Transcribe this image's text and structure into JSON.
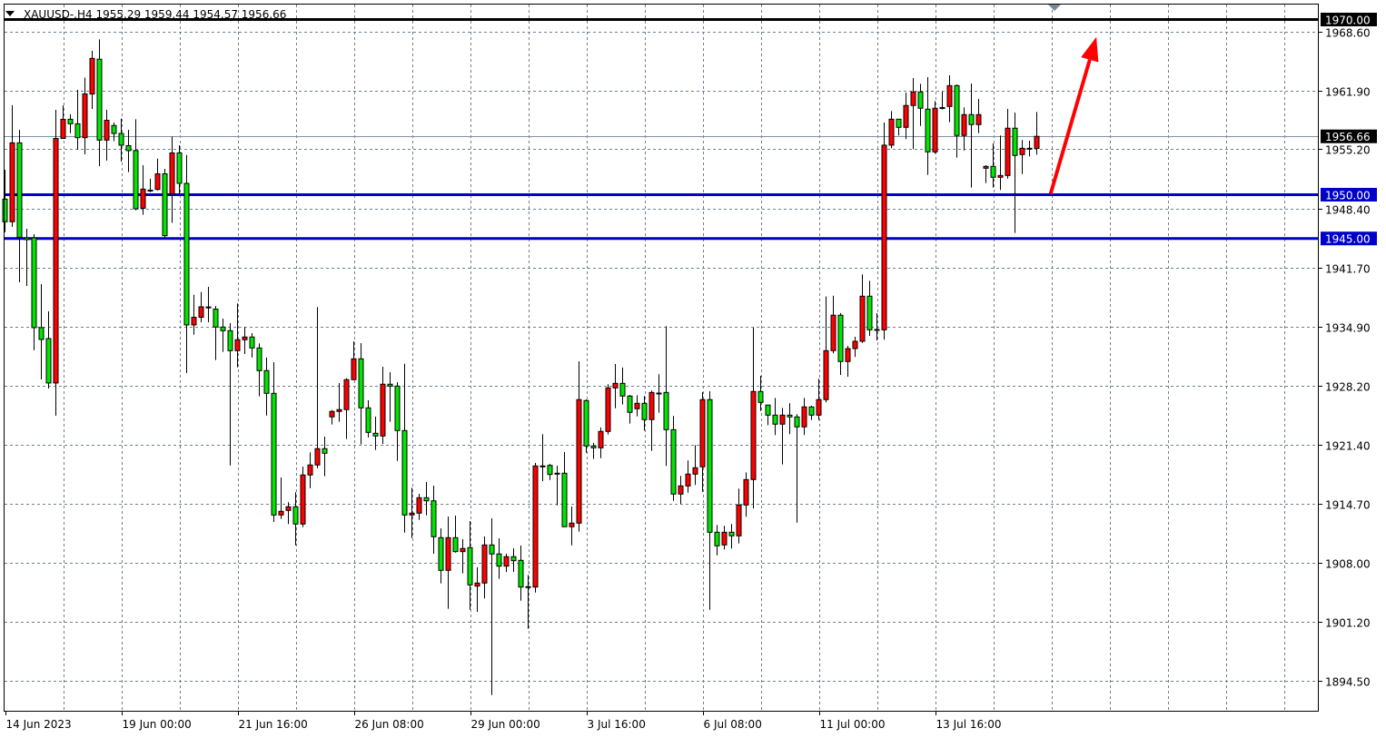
{
  "header": {
    "symbol_label": "XAUUSD-,H4  1955.29 1959.44 1954.57 1956.66"
  },
  "colors": {
    "bull": "#ff0000",
    "bear": "#00e600",
    "outline": "#000000",
    "grid": "#6f7f8f",
    "level_blue": "#0000c8",
    "level_black": "#000000",
    "arrow": "#ff0000",
    "current_price_line": "#8090a0"
  },
  "chart_data": {
    "type": "candlestick",
    "title": "XAUUSD-,H4",
    "ylim": [
      1892.9,
      1972.0
    ],
    "grid": true,
    "y_ticks": [
      "1968.60",
      "1961.90",
      "1955.20",
      "1948.40",
      "1941.70",
      "1934.90",
      "1928.20",
      "1921.40",
      "1914.70",
      "1908.00",
      "1901.20",
      "1894.50"
    ],
    "x_ticks": [
      {
        "index": 0,
        "label": "14 Jun 2023"
      },
      {
        "index": 16,
        "label": "19 Jun 00:00"
      },
      {
        "index": 32,
        "label": "21 Jun 16:00"
      },
      {
        "index": 48,
        "label": "26 Jun 08:00"
      },
      {
        "index": 64,
        "label": "29 Jun 00:00"
      },
      {
        "index": 80,
        "label": "3 Jul 16:00"
      },
      {
        "index": 96,
        "label": "6 Jul 08:00"
      },
      {
        "index": 112,
        "label": "11 Jul 00:00"
      },
      {
        "index": 128,
        "label": "13 Jul 16:00"
      }
    ],
    "ohlc_fields": [
      "open",
      "high",
      "low",
      "close"
    ],
    "candles": [
      [
        1949.49,
        1952.85,
        1945.72,
        1946.91
      ],
      [
        1946.91,
        1960.21,
        1946.32,
        1955.92
      ],
      [
        1955.92,
        1957.41,
        1939.99,
        1945.13
      ],
      [
        1945.08,
        1946.11,
        1939.58,
        1944.87
      ],
      [
        1945.08,
        1945.49,
        1932.23,
        1934.82
      ],
      [
        1934.82,
        1939.79,
        1928.91,
        1933.47
      ],
      [
        1933.57,
        1936.68,
        1927.87,
        1928.5
      ],
      [
        1928.5,
        1959.69,
        1924.76,
        1956.42
      ],
      [
        1956.42,
        1960.21,
        1956.37,
        1958.61
      ],
      [
        1958.61,
        1959.2,
        1957.03,
        1958.09
      ],
      [
        1958.09,
        1961.97,
        1955.13,
        1956.51
      ],
      [
        1956.51,
        1963.37,
        1954.61,
        1961.5
      ],
      [
        1961.5,
        1966.43,
        1959.79,
        1965.56
      ],
      [
        1965.47,
        1967.73,
        1953.26,
        1956.23
      ],
      [
        1956.23,
        1959.69,
        1953.89,
        1958.49
      ],
      [
        1957.9,
        1958.24,
        1956.11,
        1956.99
      ],
      [
        1956.99,
        1958.69,
        1953.78,
        1955.65
      ],
      [
        1955.6,
        1957.41,
        1952.58,
        1955.03
      ],
      [
        1955.04,
        1958.61,
        1948.22,
        1948.39
      ],
      [
        1948.45,
        1953.37,
        1947.7,
        1950.64
      ],
      [
        1950.48,
        1951.82,
        1950.28,
        1950.52
      ],
      [
        1950.6,
        1954.12,
        1950.48,
        1952.38
      ],
      [
        1952.38,
        1952.95,
        1945.13,
        1945.32
      ],
      [
        1950.08,
        1956.63,
        1946.79,
        1954.77
      ],
      [
        1954.77,
        1955.65,
        1950.05,
        1951.29
      ],
      [
        1951.29,
        1954.53,
        1929.65,
        1935.13
      ],
      [
        1935.13,
        1938.58,
        1934.02,
        1936.0
      ],
      [
        1936.0,
        1938.9,
        1935.44,
        1937.2
      ],
      [
        1937.12,
        1939.48,
        1935.44,
        1937.18
      ],
      [
        1936.94,
        1937.3,
        1931.12,
        1934.89
      ],
      [
        1934.89,
        1935.85,
        1932.05,
        1934.47
      ],
      [
        1934.47,
        1935.33,
        1919.09,
        1932.19
      ],
      [
        1932.19,
        1937.58,
        1930.29,
        1933.44
      ],
      [
        1933.44,
        1934.92,
        1931.81,
        1933.75
      ],
      [
        1933.75,
        1934.19,
        1931.4,
        1932.5
      ],
      [
        1932.5,
        1933.02,
        1926.97,
        1929.91
      ],
      [
        1929.91,
        1931.4,
        1924.79,
        1927.32
      ],
      [
        1927.32,
        1930.88,
        1912.64,
        1913.43
      ],
      [
        1913.43,
        1917.71,
        1912.98,
        1913.85
      ],
      [
        1913.95,
        1914.89,
        1912.4,
        1914.37
      ],
      [
        1914.37,
        1916.03,
        1909.97,
        1912.4
      ],
      [
        1912.4,
        1918.96,
        1912.04,
        1918.0
      ],
      [
        1918.0,
        1920.59,
        1916.5,
        1919.14
      ],
      [
        1919.14,
        1937.17,
        1918.78,
        1921.0
      ],
      [
        1921.0,
        1922.38,
        1917.85,
        1920.48
      ],
      [
        1924.63,
        1925.42,
        1923.76,
        1925.25
      ],
      [
        1925.25,
        1928.49,
        1924.07,
        1925.46
      ],
      [
        1925.46,
        1929.04,
        1922.1,
        1928.88
      ],
      [
        1928.88,
        1933.26,
        1928.88,
        1931.26
      ],
      [
        1931.26,
        1933.05,
        1921.48,
        1925.66
      ],
      [
        1925.66,
        1926.52,
        1922.28,
        1922.86
      ],
      [
        1922.76,
        1924.66,
        1920.86,
        1922.45
      ],
      [
        1922.45,
        1930.36,
        1921.55,
        1928.36
      ],
      [
        1928.36,
        1929.74,
        1924.07,
        1928.15
      ],
      [
        1928.15,
        1928.6,
        1919.61,
        1923.07
      ],
      [
        1923.07,
        1930.7,
        1911.42,
        1913.43
      ],
      [
        1913.43,
        1916.54,
        1910.8,
        1913.64
      ],
      [
        1913.64,
        1915.85,
        1912.87,
        1915.4
      ],
      [
        1915.4,
        1917.2,
        1913.39,
        1915.05
      ],
      [
        1915.05,
        1916.78,
        1909.01,
        1910.95
      ],
      [
        1910.84,
        1911.91,
        1905.62,
        1907.11
      ],
      [
        1907.11,
        1913.26,
        1902.72,
        1910.84
      ],
      [
        1910.84,
        1913.36,
        1909.14,
        1909.25
      ],
      [
        1909.25,
        1910.67,
        1906.76,
        1909.6
      ],
      [
        1909.7,
        1912.74,
        1902.61,
        1905.45
      ],
      [
        1905.31,
        1907.45,
        1902.37,
        1905.66
      ],
      [
        1905.66,
        1910.98,
        1903.9,
        1910.01
      ],
      [
        1910.01,
        1913.05,
        1892.87,
        1908.98
      ],
      [
        1908.98,
        1910.77,
        1906.14,
        1907.59
      ],
      [
        1907.59,
        1909.01,
        1906.94,
        1908.67
      ],
      [
        1908.67,
        1909.63,
        1906.94,
        1908.21
      ],
      [
        1908.25,
        1909.94,
        1903.65,
        1905.2
      ],
      [
        1905.2,
        1906.59,
        1900.44,
        1905.25
      ],
      [
        1905.2,
        1919.37,
        1904.58,
        1919.03
      ],
      [
        1919.03,
        1922.66,
        1917.3,
        1918.96
      ],
      [
        1919.09,
        1919.27,
        1917.43,
        1918.06
      ],
      [
        1918.2,
        1919.06,
        1914.53,
        1918.18
      ],
      [
        1918.2,
        1920.62,
        1912.09,
        1912.09
      ],
      [
        1912.09,
        1914.4,
        1909.97,
        1912.5
      ],
      [
        1912.5,
        1930.98,
        1911.53,
        1926.6
      ],
      [
        1926.49,
        1926.63,
        1920.54,
        1921.31
      ],
      [
        1921.31,
        1921.65,
        1919.82,
        1921.1
      ],
      [
        1921.1,
        1923.42,
        1919.92,
        1922.97
      ],
      [
        1922.97,
        1928.36,
        1922.62,
        1927.94
      ],
      [
        1927.94,
        1930.67,
        1925.62,
        1928.46
      ],
      [
        1928.46,
        1930.26,
        1926.04,
        1927.01
      ],
      [
        1927.01,
        1927.15,
        1923.86,
        1925.15
      ],
      [
        1925.56,
        1927.11,
        1924.69,
        1926.18
      ],
      [
        1926.18,
        1927.01,
        1923.07,
        1924.32
      ],
      [
        1924.32,
        1927.63,
        1920.75,
        1927.42
      ],
      [
        1927.35,
        1929.5,
        1925.11,
        1927.32
      ],
      [
        1927.42,
        1934.99,
        1919.03,
        1923.17
      ],
      [
        1923.17,
        1924.73,
        1915.05,
        1915.82
      ],
      [
        1915.82,
        1917.89,
        1914.68,
        1916.75
      ],
      [
        1916.75,
        1919.65,
        1915.98,
        1918.1
      ],
      [
        1918.1,
        1921.41,
        1916.86,
        1918.82
      ],
      [
        1918.93,
        1927.46,
        1916.08,
        1926.6
      ],
      [
        1926.6,
        1927.56,
        1902.61,
        1911.46
      ],
      [
        1911.46,
        1912.29,
        1908.83,
        1909.91
      ],
      [
        1910.01,
        1912.19,
        1909.5,
        1911.46
      ],
      [
        1911.46,
        1912.4,
        1909.6,
        1911.05
      ],
      [
        1911.05,
        1916.44,
        1910.18,
        1914.57
      ],
      [
        1914.57,
        1918.3,
        1913.23,
        1917.47
      ],
      [
        1917.47,
        1934.82,
        1914.16,
        1927.53
      ],
      [
        1927.53,
        1929.32,
        1925.31,
        1926.29
      ],
      [
        1925.98,
        1926.01,
        1923.69,
        1924.83
      ],
      [
        1924.83,
        1926.8,
        1922.56,
        1923.8
      ],
      [
        1923.8,
        1925.66,
        1919.2,
        1924.83
      ],
      [
        1924.83,
        1926.18,
        1922.66,
        1924.63
      ],
      [
        1924.63,
        1924.94,
        1912.56,
        1923.49
      ],
      [
        1923.49,
        1926.8,
        1922.56,
        1925.77
      ],
      [
        1925.77,
        1925.9,
        1924.27,
        1924.83
      ],
      [
        1924.83,
        1928.98,
        1924.27,
        1926.6
      ],
      [
        1926.6,
        1938.37,
        1926.29,
        1932.19
      ],
      [
        1932.19,
        1938.47,
        1931.88,
        1936.24
      ],
      [
        1936.24,
        1936.47,
        1929.42,
        1930.95
      ],
      [
        1930.95,
        1932.74,
        1929.22,
        1932.43
      ],
      [
        1932.43,
        1933.78,
        1931.47,
        1933.26
      ],
      [
        1933.26,
        1940.9,
        1933.08,
        1938.41
      ],
      [
        1938.41,
        1940.17,
        1933.88,
        1934.57
      ],
      [
        1934.57,
        1936.47,
        1933.36,
        1934.61
      ],
      [
        1934.57,
        1958.24,
        1933.44,
        1955.65
      ],
      [
        1955.65,
        1959.55,
        1955.3,
        1958.62
      ],
      [
        1958.62,
        1958.65,
        1956.76,
        1957.69
      ],
      [
        1957.69,
        1961.66,
        1956.34,
        1960.18
      ],
      [
        1960.18,
        1963.32,
        1955.2,
        1961.73
      ],
      [
        1961.73,
        1962.66,
        1957.85,
        1959.87
      ],
      [
        1959.76,
        1963.42,
        1952.26,
        1954.89
      ],
      [
        1954.89,
        1960.69,
        1954.68,
        1959.87
      ],
      [
        1959.93,
        1961.76,
        1959.72,
        1959.95
      ],
      [
        1960.07,
        1963.63,
        1958.27,
        1962.45
      ],
      [
        1962.45,
        1962.59,
        1954.23,
        1956.76
      ],
      [
        1956.76,
        1959.97,
        1955.05,
        1959.14
      ],
      [
        1959.14,
        1962.69,
        1950.81,
        1958.0
      ],
      [
        1958.0,
        1960.93,
        1957.03,
        1959.14
      ],
      [
        1953.02,
        1953.37,
        1951.33,
        1953.23
      ],
      [
        1953.23,
        1955.85,
        1950.81,
        1951.99
      ],
      [
        1951.99,
        1956.76,
        1950.54,
        1952.19
      ],
      [
        1952.19,
        1959.79,
        1951.84,
        1957.59
      ],
      [
        1957.59,
        1959.38,
        1945.63,
        1954.48
      ],
      [
        1954.58,
        1956.24,
        1952.36,
        1955.3
      ],
      [
        1955.3,
        1956.16,
        1954.37,
        1955.3
      ],
      [
        1955.29,
        1959.44,
        1954.57,
        1956.66
      ]
    ],
    "levels": [
      {
        "price": 1970.0,
        "label": "1970.00",
        "color": "#000000"
      },
      {
        "price": 1950.0,
        "label": "1950.00",
        "color": "#0000c8"
      },
      {
        "price": 1945.0,
        "label": "1945.00",
        "color": "#0000c8"
      }
    ],
    "current_price": {
      "price": 1956.66,
      "label": "1956.66"
    },
    "arrow": {
      "from": {
        "index": 143.9,
        "price": 1950.1
      },
      "to": {
        "index": 150.2,
        "price": 1968.0
      }
    }
  }
}
